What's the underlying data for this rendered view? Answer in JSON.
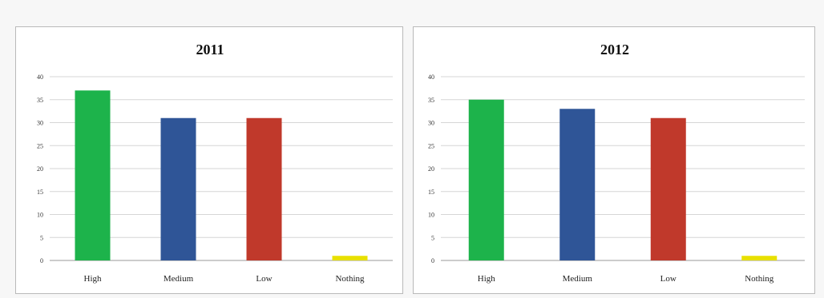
{
  "chart_data": [
    {
      "type": "bar",
      "title": "2011",
      "categories": [
        "High",
        "Medium",
        "Low",
        "Nothing"
      ],
      "values": [
        37,
        31,
        31,
        1
      ],
      "colors": [
        "#1db34b",
        "#2f5597",
        "#c0392b",
        "#e8e000"
      ],
      "ylim": [
        0,
        40
      ],
      "yticks": [
        "0",
        "5",
        "10",
        "15",
        "20",
        "25",
        "30",
        "35",
        "40"
      ],
      "grid": true,
      "legend": "none"
    },
    {
      "type": "bar",
      "title": "2012",
      "categories": [
        "High",
        "Medium",
        "Low",
        "Nothing"
      ],
      "values": [
        35,
        33,
        31,
        1
      ],
      "colors": [
        "#1db34b",
        "#2f5597",
        "#c0392b",
        "#e8e000"
      ],
      "ylim": [
        0,
        40
      ],
      "yticks": [
        "0",
        "5",
        "10",
        "15",
        "20",
        "25",
        "30",
        "35",
        "40"
      ],
      "grid": true,
      "legend": "none"
    }
  ]
}
